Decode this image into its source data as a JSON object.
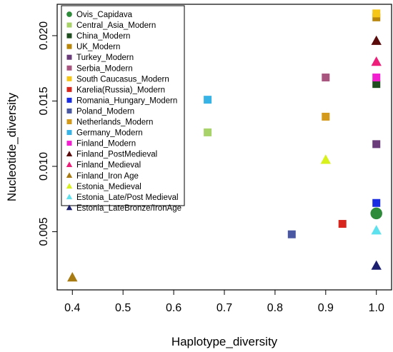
{
  "chart_data": {
    "type": "scatter",
    "xlabel": "Haplotype_diversity",
    "ylabel": "Nucleotide_diversity",
    "xlim": [
      0.37,
      1.03
    ],
    "ylim": [
      0.00055,
      0.0224
    ],
    "x_ticks": [
      "0.4",
      "0.5",
      "0.6",
      "0.7",
      "0.8",
      "0.9",
      "1.0"
    ],
    "y_ticks": [
      "0.005",
      "0.010",
      "0.015",
      "0.020"
    ],
    "legend_position": "top-left",
    "series": [
      {
        "name": "Ovis_Capidava",
        "color": "#2e8b3a",
        "marker": "circle",
        "points": [
          [
            1.0,
            0.0064
          ]
        ]
      },
      {
        "name": "Central_Asia_Modern",
        "color": "#a8d26a",
        "marker": "square",
        "points": [
          [
            0.667,
            0.0126
          ]
        ]
      },
      {
        "name": "China_Modern",
        "color": "#1f4d1f",
        "marker": "square",
        "points": [
          [
            1.0,
            0.0163
          ]
        ]
      },
      {
        "name": "UK_Modern",
        "color": "#b8860b",
        "marker": "square",
        "points": [
          [
            1.0,
            0.0214
          ]
        ]
      },
      {
        "name": "Turkey_Modern",
        "color": "#6a3d7a",
        "marker": "square",
        "points": [
          [
            1.0,
            0.0117
          ]
        ]
      },
      {
        "name": "Serbia_Modern",
        "color": "#a8557f",
        "marker": "square",
        "points": [
          [
            0.9,
            0.0168
          ]
        ]
      },
      {
        "name": "South Caucasus_Modern",
        "color": "#f5c518",
        "marker": "square",
        "points": [
          [
            1.0,
            0.0217
          ]
        ]
      },
      {
        "name": "Karelia(Russia)_Modern",
        "color": "#d7261e",
        "marker": "square",
        "points": [
          [
            0.933,
            0.0056
          ]
        ]
      },
      {
        "name": "Romania_Hungary_Modern",
        "color": "#1a2de0",
        "marker": "square",
        "points": [
          [
            1.0,
            0.0072
          ]
        ]
      },
      {
        "name": "Poland_Modern",
        "color": "#4a58a3",
        "marker": "square",
        "points": [
          [
            0.833,
            0.0048
          ]
        ]
      },
      {
        "name": "Netherlands_Modern",
        "color": "#d49a1c",
        "marker": "square",
        "points": [
          [
            0.9,
            0.0138
          ]
        ]
      },
      {
        "name": "Germany_Modern",
        "color": "#38b3e6",
        "marker": "square",
        "points": [
          [
            0.667,
            0.0151
          ]
        ]
      },
      {
        "name": "Finland_Modern",
        "color": "#f21fd0",
        "marker": "square",
        "points": [
          [
            1.0,
            0.0168
          ]
        ]
      },
      {
        "name": "Finland_PostMedieval",
        "color": "#5a0a0a",
        "marker": "triangle",
        "points": [
          [
            1.0,
            0.0196
          ]
        ]
      },
      {
        "name": "Finland_Medieval",
        "color": "#ee1f7a",
        "marker": "triangle",
        "points": [
          [
            1.0,
            0.018
          ]
        ]
      },
      {
        "name": "Finland_Iron Age",
        "color": "#a87a12",
        "marker": "triangle",
        "points": [
          [
            0.4,
            0.0015
          ]
        ]
      },
      {
        "name": "Estonia_Medieval",
        "color": "#d8f01c",
        "marker": "triangle",
        "points": [
          [
            0.9,
            0.0105
          ]
        ]
      },
      {
        "name": "Estonia_Late/Post Medieval",
        "color": "#5ee1ee",
        "marker": "triangle",
        "points": [
          [
            1.0,
            0.0051
          ]
        ]
      },
      {
        "name": "Estonia_LateBronze/IronAge",
        "color": "#1c1f6e",
        "marker": "triangle",
        "points": [
          [
            1.0,
            0.0024
          ]
        ]
      }
    ]
  }
}
